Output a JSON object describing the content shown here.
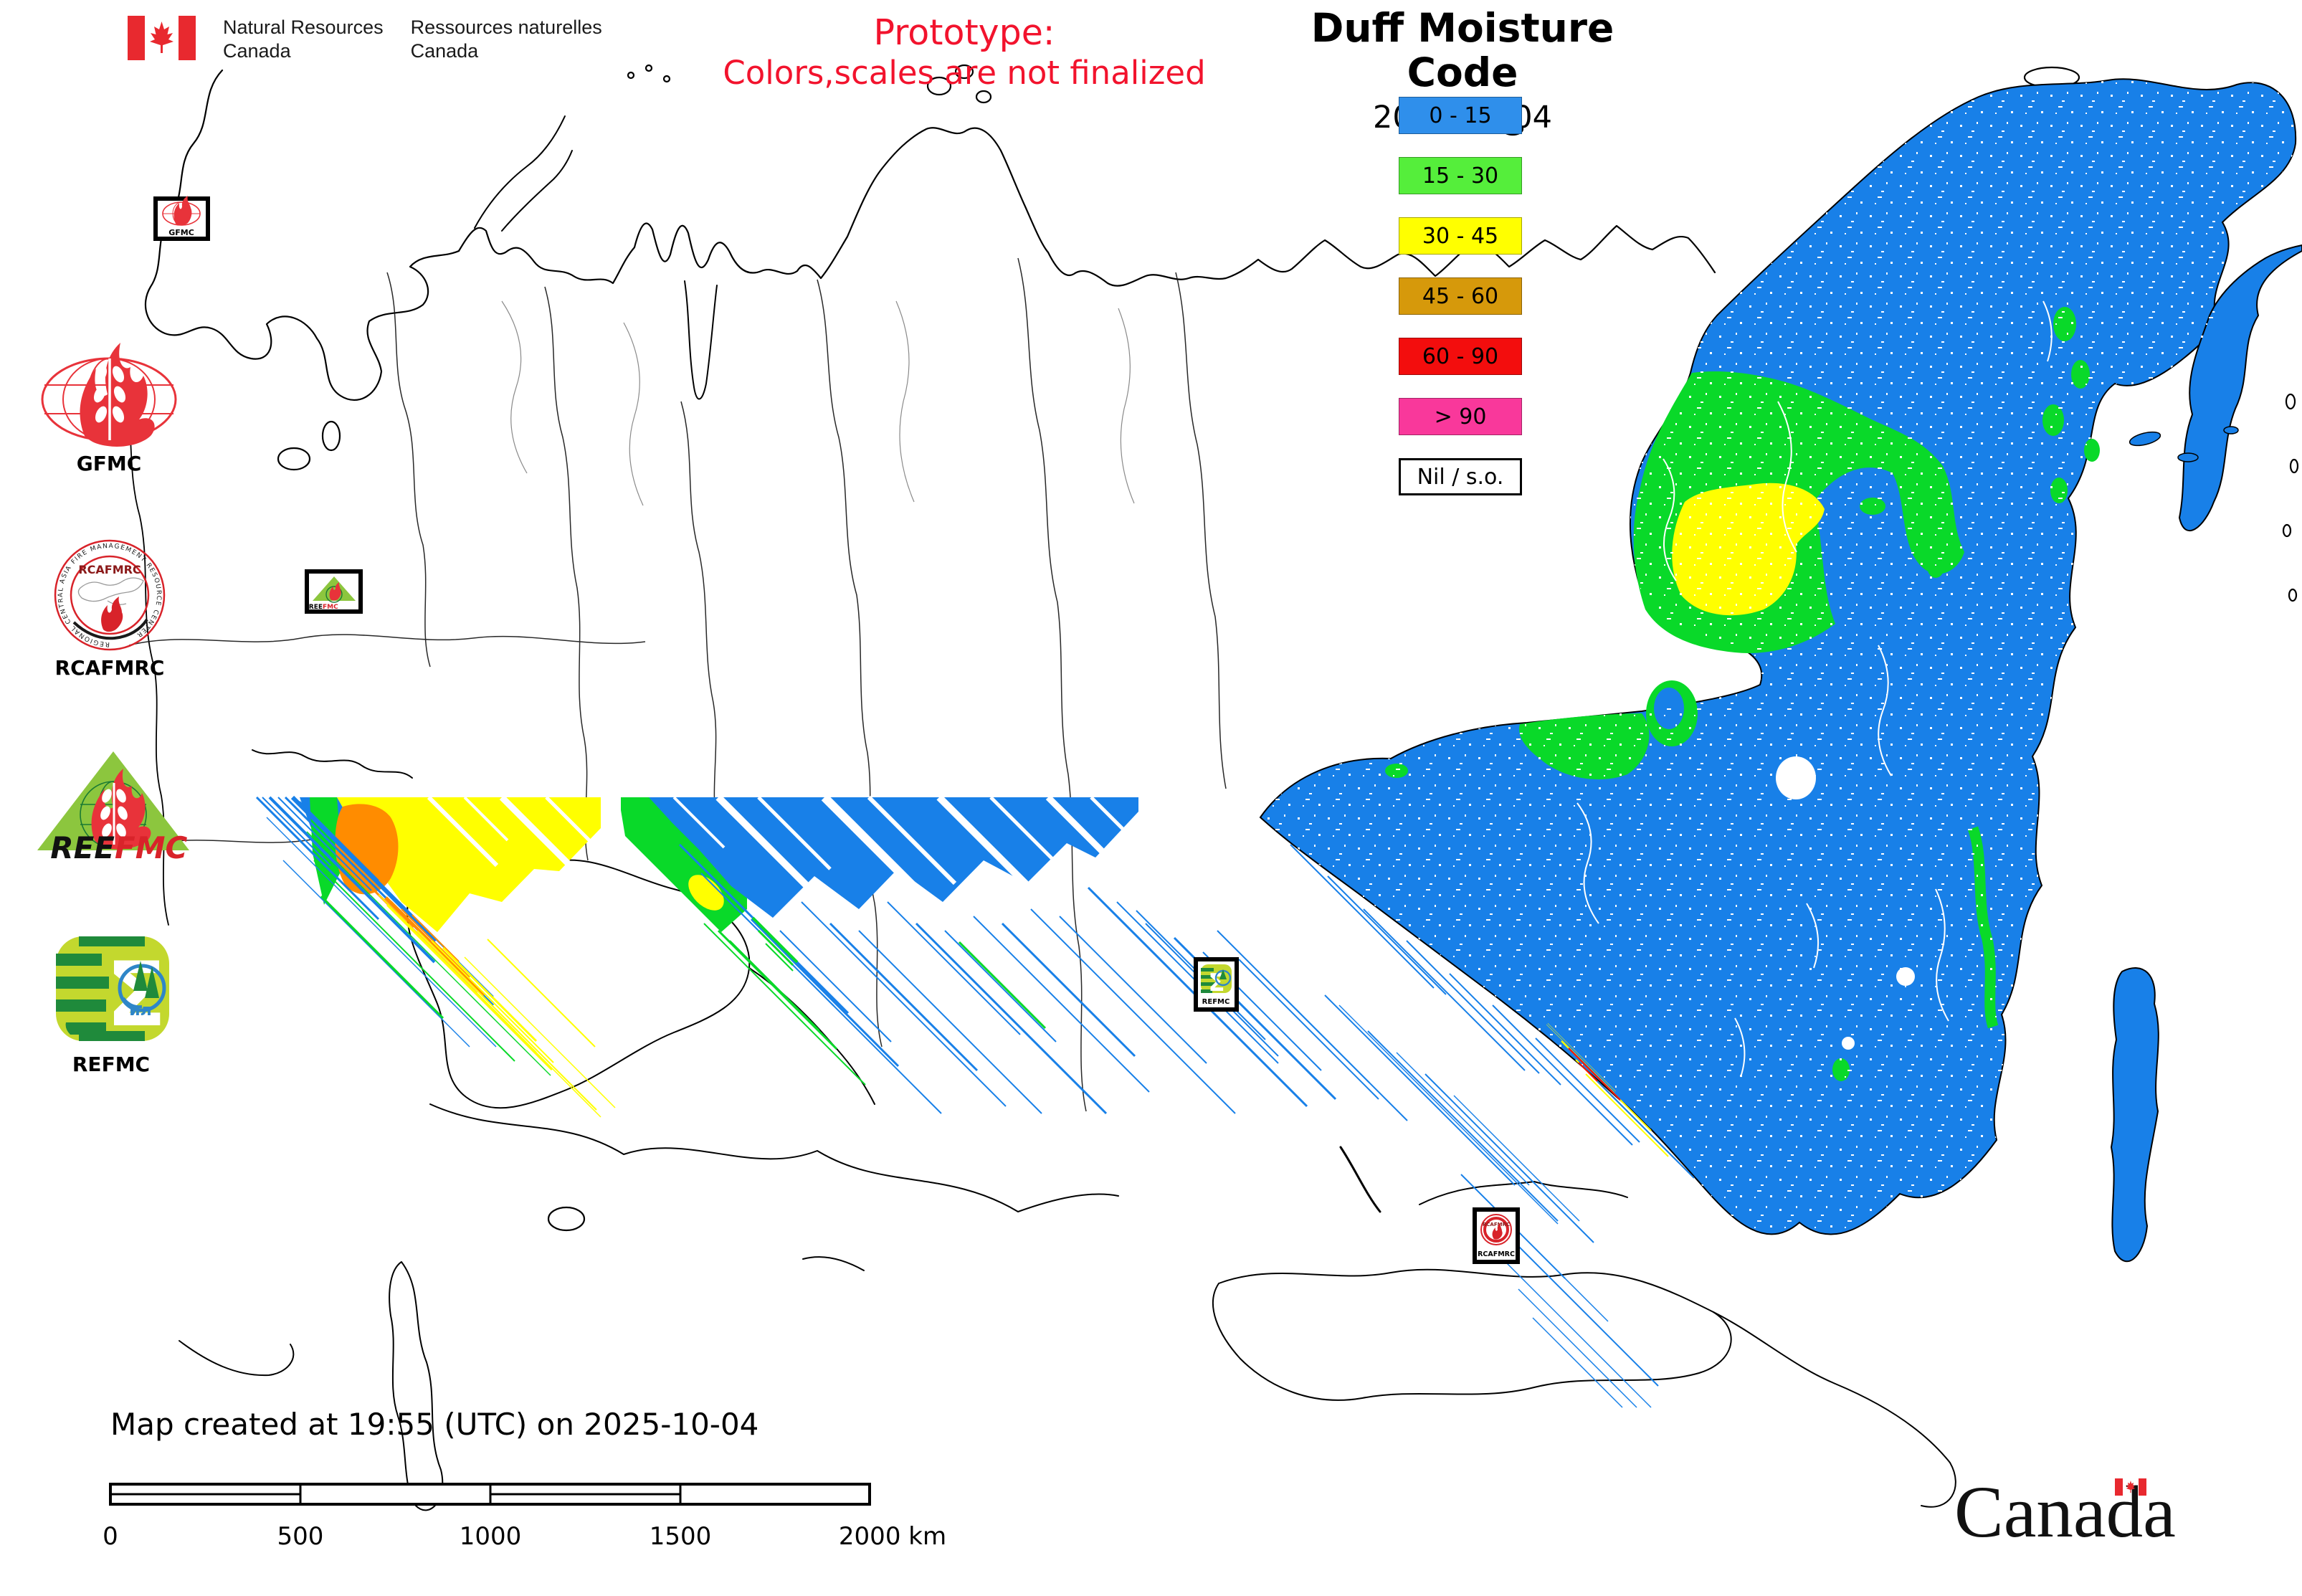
{
  "header": {
    "nrcan": {
      "en_line1": "Natural Resources",
      "en_line2": "Canada",
      "fr_line1": "Ressources naturelles",
      "fr_line2": "Canada"
    },
    "prototype": {
      "line1": "Prototype:",
      "line2": "Colors,scales are not finalized",
      "color": "#f2132d"
    },
    "title": "Duff Moisture Code",
    "date": "2025-10-04"
  },
  "legend": {
    "entries": [
      {
        "label": "0 - 15",
        "color": "#2F8FEB"
      },
      {
        "label": "15 - 30",
        "color": "#55EE3B"
      },
      {
        "label": "30 - 45",
        "color": "#FFFF00"
      },
      {
        "label": "45 - 60",
        "color": "#D6990B"
      },
      {
        "label": "60 - 90",
        "color": "#F30D0D"
      },
      {
        "label": "> 90",
        "color": "#F9389B"
      },
      {
        "label": "Nil / s.o.",
        "color": "#FFFFFF"
      }
    ]
  },
  "partners": {
    "gfmc": {
      "label": "GFMC"
    },
    "rcafmrc": {
      "label": "RCAFMRC",
      "inner": "RCAFMRC",
      "ring": "REGIONAL CENTRAL ASIA FIRE MANAGEMENT RESOURCE CENTER"
    },
    "reefmc": {
      "label_black": "REE",
      "label_red": "FMC"
    },
    "refmc": {
      "label": "REFMC",
      "inner": "ил"
    }
  },
  "map": {
    "colors": {
      "dmc_blue": "#1880E8",
      "dmc_green": "#09D929",
      "dmc_yellow": "#FFFF00",
      "dmc_ochre": "#D6990B",
      "dmc_red": "#F30D0D",
      "dmc_orange": "#FF8C00",
      "coastline": "#000000"
    },
    "markers": [
      {
        "label": "GFMC"
      },
      {
        "label": "REEFMC"
      },
      {
        "label": "REFMC"
      },
      {
        "label": "RCAFMRC"
      }
    ]
  },
  "footer": {
    "created_text": "Map created at 19:55 (UTC) on 2025-10-04",
    "scalebar": {
      "ticks": [
        "0",
        "500",
        "1000",
        "1500"
      ],
      "last_tick": "2000 km"
    },
    "wordmark": "Canada"
  }
}
